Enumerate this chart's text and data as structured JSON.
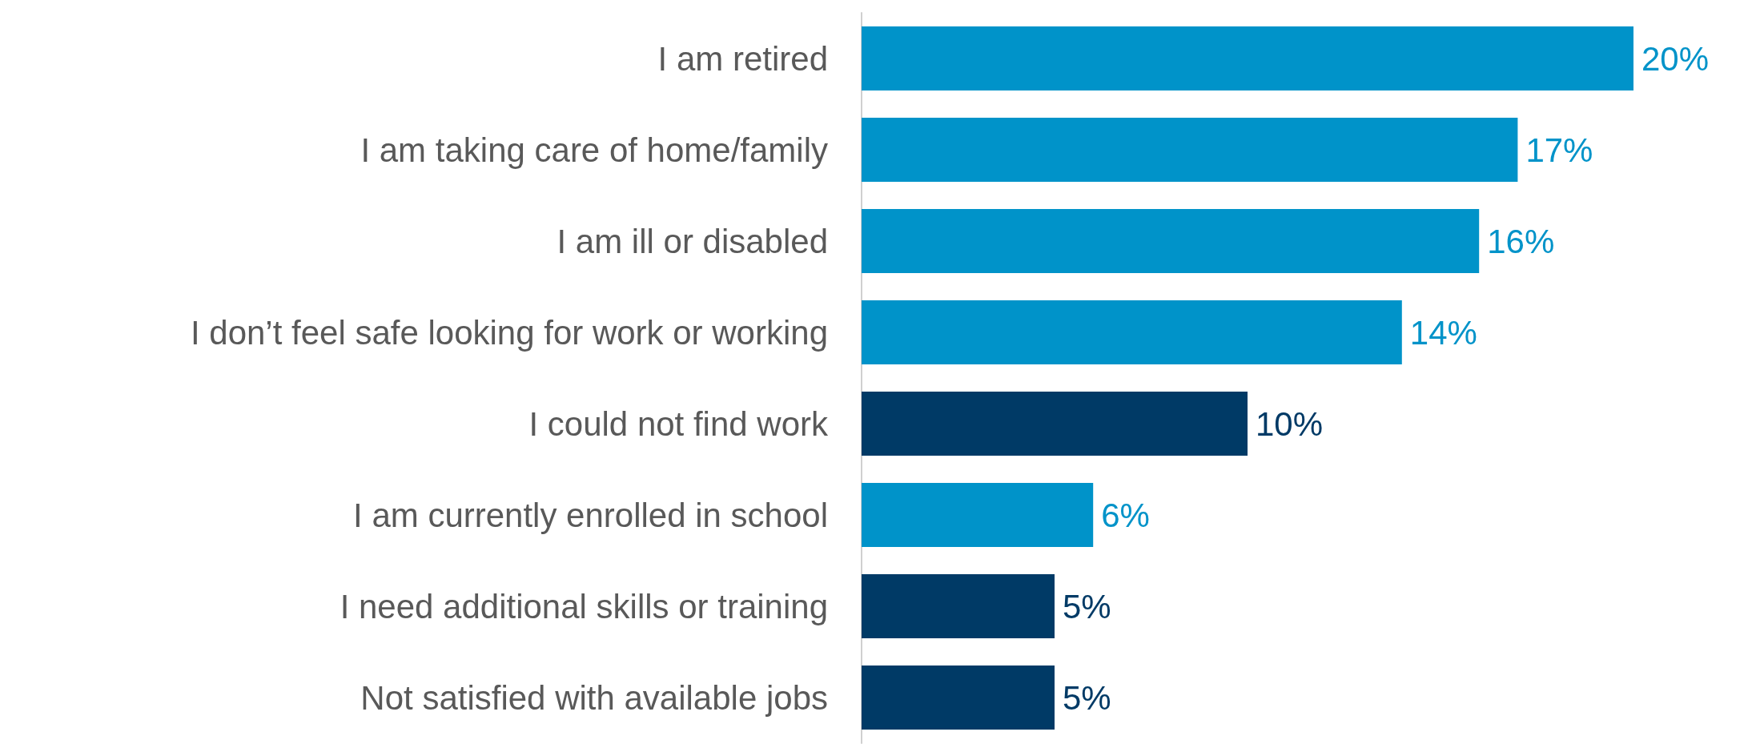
{
  "chart_data": {
    "type": "bar",
    "orientation": "horizontal",
    "categories": [
      "I am retired",
      "I am taking care of home/family",
      "I am ill or disabled",
      "I don’t feel safe looking for work or working",
      "I could not find work",
      "I am currently enrolled in school",
      "I need additional skills or training",
      "Not satisfied with available jobs"
    ],
    "values": [
      20,
      17,
      16,
      14,
      10,
      6,
      5,
      5
    ],
    "colors": [
      "#0093c9",
      "#0093c9",
      "#0093c9",
      "#0093c9",
      "#003a66",
      "#0093c9",
      "#003a66",
      "#003a66"
    ],
    "value_labels": [
      "20%",
      "17%",
      "16%",
      "14%",
      "10%",
      "6%",
      "5%",
      "5%"
    ]
  }
}
